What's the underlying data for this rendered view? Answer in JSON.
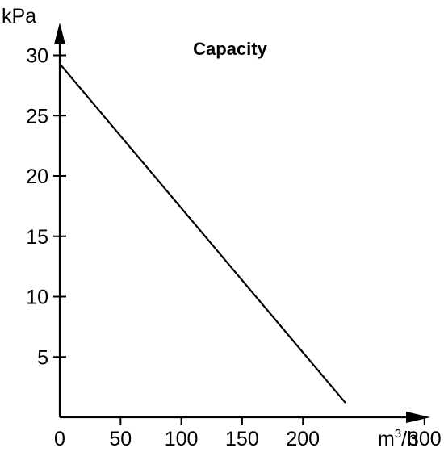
{
  "chart_data": {
    "type": "line",
    "title": "Capacity",
    "xlabel": "m³/h",
    "ylabel": "kPa",
    "xlim": [
      0,
      300
    ],
    "ylim": [
      0,
      30
    ],
    "x_ticks": [
      0,
      50,
      100,
      150,
      200,
      300
    ],
    "y_ticks": [
      5,
      10,
      15,
      20,
      25,
      30
    ],
    "x_tick_labels": [
      "0",
      "50",
      "100",
      "150",
      "200",
      "300"
    ],
    "y_tick_labels": [
      "5",
      "10",
      "15",
      "20",
      "25",
      "30"
    ],
    "grid": false,
    "legend": "none",
    "series": [
      {
        "x": [
          0,
          235
        ],
        "y": [
          29.3,
          1.2
        ]
      }
    ],
    "line_color": "#000000"
  }
}
